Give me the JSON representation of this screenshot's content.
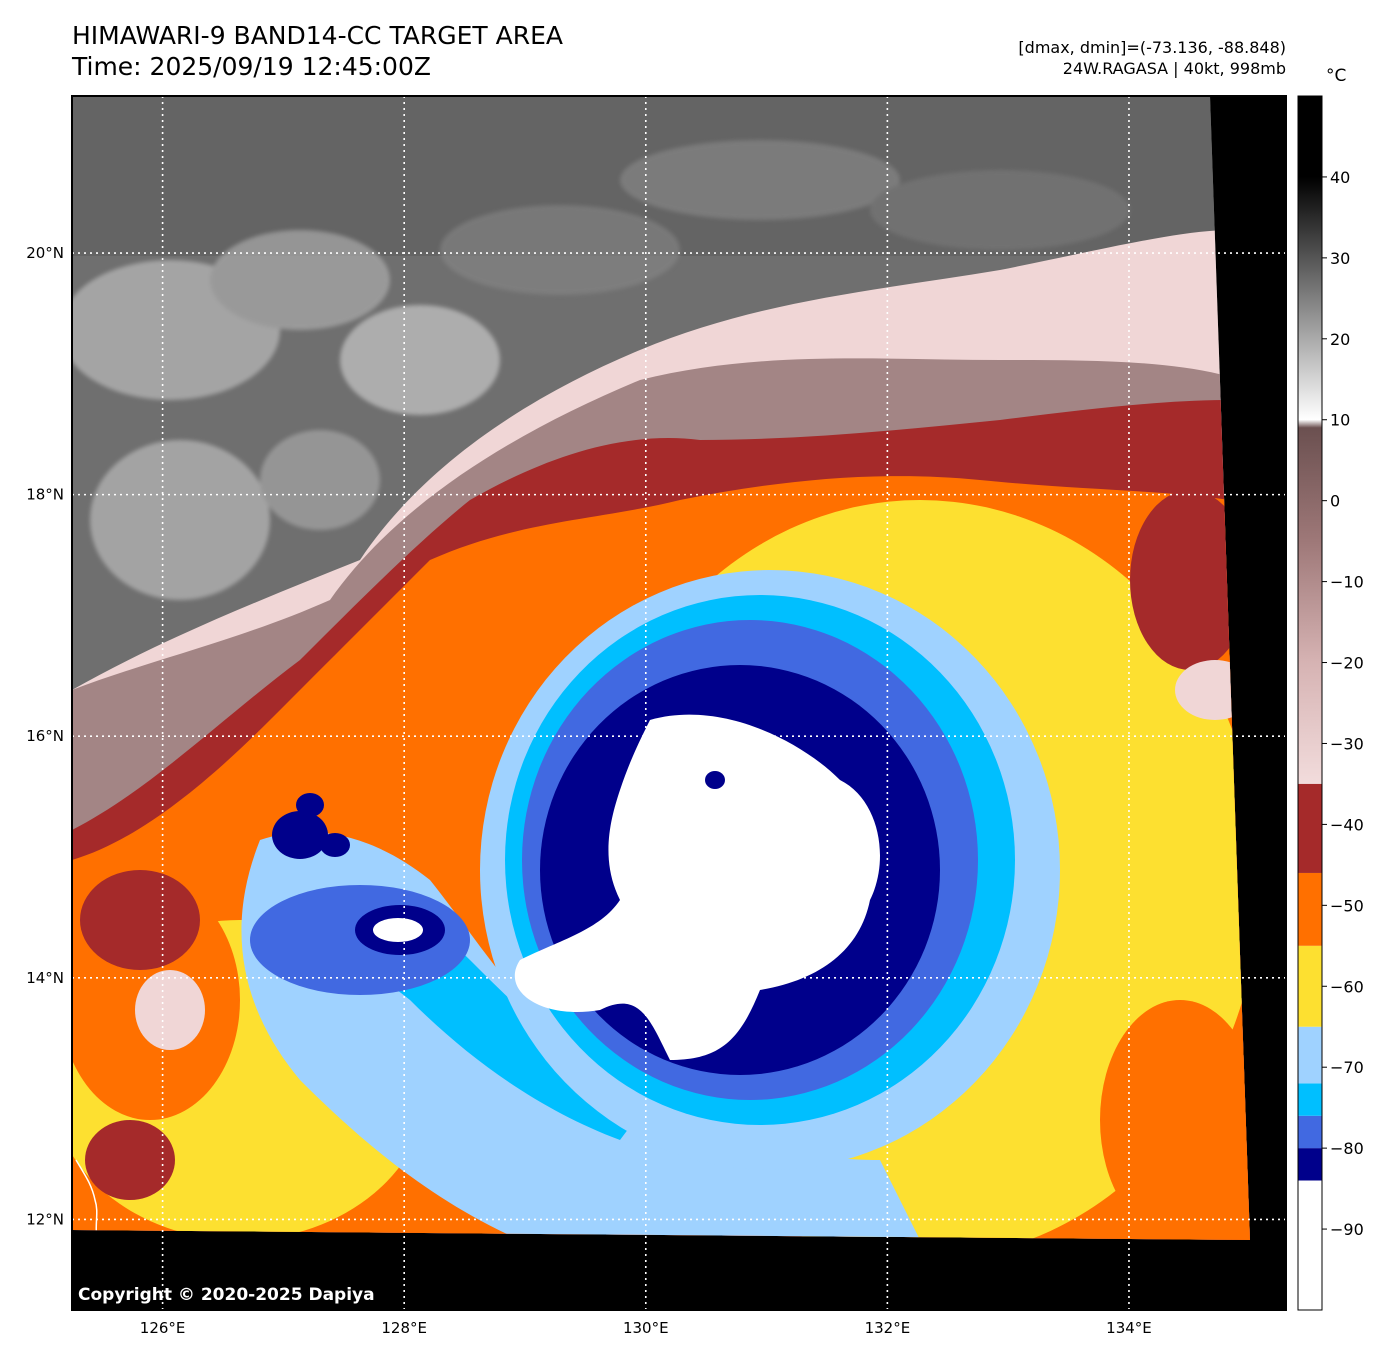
{
  "header": {
    "title_line1": "HIMAWARI-9 BAND14-CC TARGET AREA",
    "title_line2": "Time: 2025/09/19 12:45:00Z",
    "stats": "[dmax, dmin]=(-73.136, -88.848)",
    "storm": "24W.RAGASA | 40kt, 998mb"
  },
  "map": {
    "lon_labels": [
      "126°E",
      "128°E",
      "130°E",
      "132°E",
      "134°E"
    ],
    "lat_labels": [
      "20°N",
      "18°N",
      "16°N",
      "14°N",
      "12°N"
    ],
    "lon_range": [
      125.25,
      135.3
    ],
    "lat_range": [
      11.25,
      21.3
    ],
    "eye_center": {
      "lon": 131.0,
      "lat": 14.8
    },
    "copyright": "Copyright © 2020-2025 Dapiya"
  },
  "colorbar": {
    "unit": "°C",
    "range": [
      -100,
      50
    ],
    "ticks": [
      {
        "value": 40,
        "label": "40"
      },
      {
        "value": 30,
        "label": "30"
      },
      {
        "value": 20,
        "label": "20"
      },
      {
        "value": 10,
        "label": "10"
      },
      {
        "value": 0,
        "label": "0"
      },
      {
        "value": -10,
        "label": "−10"
      },
      {
        "value": -20,
        "label": "−20"
      },
      {
        "value": -30,
        "label": "−30"
      },
      {
        "value": -40,
        "label": "−40"
      },
      {
        "value": -50,
        "label": "−50"
      },
      {
        "value": -60,
        "label": "−60"
      },
      {
        "value": -70,
        "label": "−70"
      },
      {
        "value": -80,
        "label": "−80"
      },
      {
        "value": -90,
        "label": "−90"
      }
    ],
    "bands": [
      {
        "from": -100,
        "to": -84,
        "color": "#ffffff"
      },
      {
        "from": -84,
        "to": -80,
        "color": "#00008b"
      },
      {
        "from": -80,
        "to": -76,
        "color": "#4169e1"
      },
      {
        "from": -76,
        "to": -72,
        "color": "#00bfff"
      },
      {
        "from": -72,
        "to": -65,
        "color": "#9fd2ff"
      },
      {
        "from": -65,
        "to": -55,
        "color": "#fde030"
      },
      {
        "from": -55,
        "to": -46,
        "color": "#ff7000"
      },
      {
        "from": -46,
        "to": -35,
        "color": "#a52a2a"
      }
    ],
    "gradient_stops": [
      {
        "value": -35,
        "color": "#f2dcdc"
      },
      {
        "value": -20,
        "color": "#d6b3b3"
      },
      {
        "value": -5,
        "color": "#9e7878"
      },
      {
        "value": 9,
        "color": "#6b5050"
      },
      {
        "value": 10,
        "color": "#ffffff"
      },
      {
        "value": 30,
        "color": "#555555"
      },
      {
        "value": 40,
        "color": "#000000"
      },
      {
        "value": 50,
        "color": "#000000"
      }
    ]
  }
}
